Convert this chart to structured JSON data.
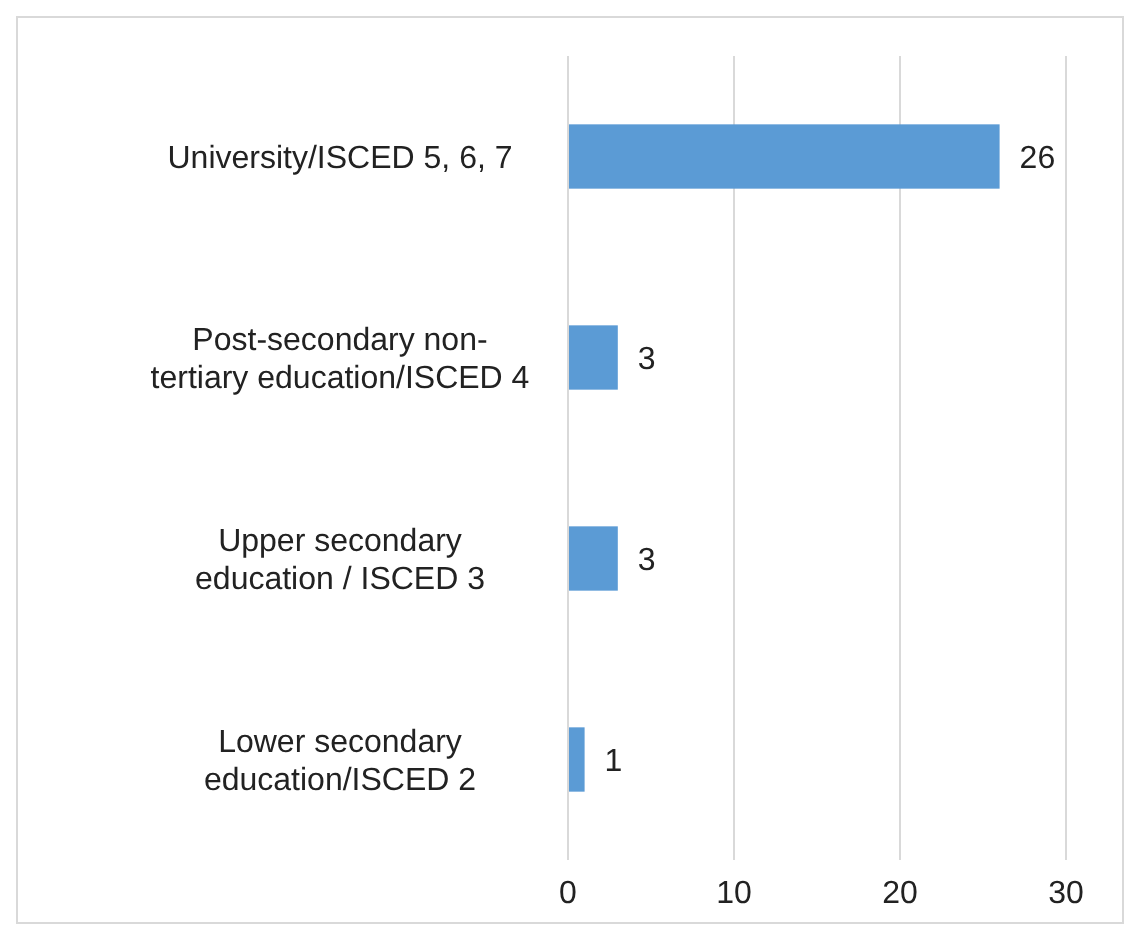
{
  "chart_data": {
    "type": "bar",
    "orientation": "horizontal",
    "categories": [
      "University/ISCED 5, 6, 7",
      "Post-secondary non-tertiary education/ISCED 4",
      "Upper secondary education / ISCED 3",
      "Lower secondary education/ISCED 2"
    ],
    "values": [
      26,
      3,
      3,
      1
    ],
    "color": "#5b9bd5",
    "xlim": [
      0,
      30
    ],
    "xticks": [
      0,
      10,
      20,
      30
    ],
    "grid": "x",
    "data_labels": true
  }
}
